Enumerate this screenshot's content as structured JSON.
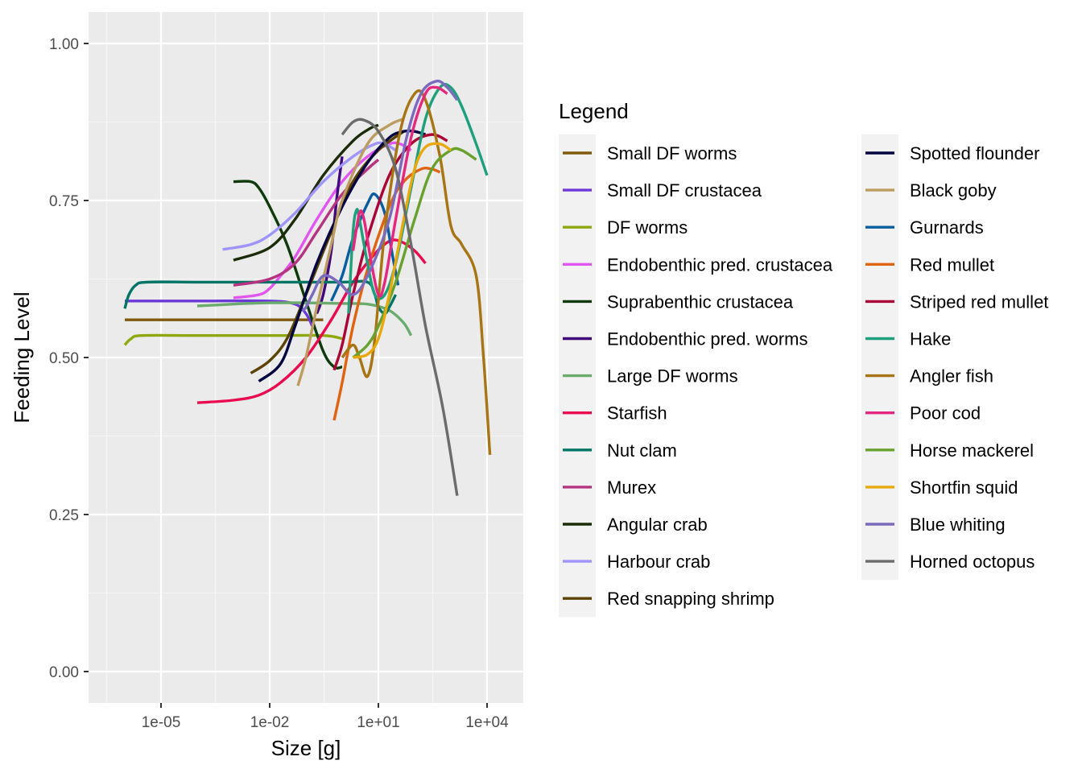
{
  "chart_data": {
    "type": "line",
    "xlabel": "Size [g]",
    "ylabel": "Feeding Level",
    "x_scale": "log10",
    "xlim": [
      1e-07,
      100000.0
    ],
    "ylim": [
      -0.05,
      1.05
    ],
    "x_ticks": [
      1e-05,
      0.01,
      10.0,
      10000.0
    ],
    "x_tick_labels": [
      "1e-05",
      "1e-02",
      "1e+01",
      "1e+04"
    ],
    "y_ticks": [
      0,
      0.25,
      0.5,
      0.75,
      1
    ],
    "y_tick_labels": [
      "0.00",
      "0.25",
      "0.50",
      "0.75",
      "1.00"
    ],
    "grid": true,
    "legend": {
      "title": "Legend",
      "placement": "right"
    },
    "series": [
      {
        "name": "Small DF worms",
        "color": "#7F5A0C",
        "points": [
          [
            1e-06,
            0.56
          ],
          [
            0.0001,
            0.56
          ],
          [
            0.01,
            0.56
          ],
          [
            0.1,
            0.56
          ],
          [
            0.3,
            0.56
          ]
        ]
      },
      {
        "name": "Small DF crustacea",
        "color": "#6C39D8",
        "points": [
          [
            1e-06,
            0.59
          ],
          [
            0.0001,
            0.59
          ],
          [
            0.01,
            0.59
          ],
          [
            0.05,
            0.585
          ],
          [
            0.1,
            0.57
          ],
          [
            0.15,
            0.55
          ]
        ]
      },
      {
        "name": "DF worms",
        "color": "#8EA80F",
        "points": [
          [
            1e-06,
            0.52
          ],
          [
            1.5e-06,
            0.53
          ],
          [
            3e-06,
            0.535
          ],
          [
            0.0001,
            0.535
          ],
          [
            0.01,
            0.535
          ],
          [
            0.3,
            0.535
          ],
          [
            1,
            0.53
          ]
        ]
      },
      {
        "name": "Endobenthic pred. crustacea",
        "color": "#E156F0",
        "points": [
          [
            0.001,
            0.595
          ],
          [
            0.005,
            0.6
          ],
          [
            0.01,
            0.61
          ],
          [
            0.02,
            0.63
          ],
          [
            0.05,
            0.66
          ],
          [
            0.2,
            0.72
          ],
          [
            1,
            0.78
          ],
          [
            5,
            0.82
          ],
          [
            20,
            0.84
          ],
          [
            40,
            0.84
          ],
          [
            80,
            0.83
          ]
        ]
      },
      {
        "name": "Suprabenthic crustacea",
        "color": "#0E3A0C",
        "points": [
          [
            0.001,
            0.78
          ],
          [
            0.003,
            0.78
          ],
          [
            0.005,
            0.77
          ],
          [
            0.01,
            0.74
          ],
          [
            0.03,
            0.68
          ],
          [
            0.1,
            0.59
          ],
          [
            0.3,
            0.51
          ],
          [
            0.6,
            0.485
          ],
          [
            1,
            0.485
          ]
        ]
      },
      {
        "name": "Endobenthic pred. worms",
        "color": "#3F087B",
        "points": [
          [
            0.2,
            0.57
          ],
          [
            0.3,
            0.6
          ],
          [
            0.5,
            0.67
          ],
          [
            0.7,
            0.75
          ],
          [
            1,
            0.82
          ]
        ]
      },
      {
        "name": "Large DF worms",
        "color": "#6BAB6D",
        "points": [
          [
            0.0001,
            0.582
          ],
          [
            0.001,
            0.585
          ],
          [
            0.01,
            0.587
          ],
          [
            0.1,
            0.587
          ],
          [
            1,
            0.586
          ],
          [
            5,
            0.585
          ],
          [
            20,
            0.575
          ],
          [
            50,
            0.555
          ],
          [
            80,
            0.535
          ]
        ]
      },
      {
        "name": "Starfish",
        "color": "#EA0A50",
        "points": [
          [
            0.0001,
            0.428
          ],
          [
            0.001,
            0.432
          ],
          [
            0.005,
            0.44
          ],
          [
            0.02,
            0.46
          ],
          [
            0.1,
            0.5
          ],
          [
            0.5,
            0.56
          ],
          [
            2,
            0.62
          ],
          [
            8,
            0.665
          ],
          [
            20,
            0.685
          ],
          [
            40,
            0.685
          ],
          [
            100,
            0.67
          ],
          [
            200,
            0.65
          ]
        ]
      },
      {
        "name": "Nut clam",
        "color": "#007566",
        "points": [
          [
            1e-06,
            0.578
          ],
          [
            1.3e-06,
            0.6
          ],
          [
            2e-06,
            0.615
          ],
          [
            4e-06,
            0.62
          ],
          [
            0.0001,
            0.62
          ],
          [
            0.01,
            0.62
          ],
          [
            1,
            0.62
          ],
          [
            5,
            0.62
          ],
          [
            8,
            0.6
          ],
          [
            10,
            0.58
          ],
          [
            15,
            0.57
          ],
          [
            20,
            0.58
          ],
          [
            30,
            0.6
          ]
        ]
      },
      {
        "name": "Murex",
        "color": "#B53480",
        "points": [
          [
            0.001,
            0.615
          ],
          [
            0.01,
            0.625
          ],
          [
            0.05,
            0.65
          ],
          [
            0.2,
            0.7
          ],
          [
            1,
            0.76
          ],
          [
            5,
            0.8
          ],
          [
            10,
            0.815
          ]
        ]
      },
      {
        "name": "Angular crab",
        "color": "#1C2C08",
        "points": [
          [
            0.001,
            0.655
          ],
          [
            0.01,
            0.675
          ],
          [
            0.05,
            0.72
          ],
          [
            0.3,
            0.79
          ],
          [
            2,
            0.845
          ],
          [
            6,
            0.865
          ],
          [
            10,
            0.87
          ]
        ]
      },
      {
        "name": "Harbour crab",
        "color": "#9E94FB",
        "points": [
          [
            0.0005,
            0.672
          ],
          [
            0.003,
            0.68
          ],
          [
            0.01,
            0.695
          ],
          [
            0.05,
            0.73
          ],
          [
            0.3,
            0.78
          ],
          [
            2,
            0.82
          ],
          [
            8,
            0.84
          ],
          [
            15,
            0.84
          ],
          [
            30,
            0.83
          ]
        ]
      },
      {
        "name": "Red snapping shrimp",
        "color": "#5C4304",
        "points": [
          [
            0.003,
            0.475
          ],
          [
            0.01,
            0.495
          ],
          [
            0.03,
            0.53
          ],
          [
            0.1,
            0.6
          ],
          [
            0.5,
            0.7
          ],
          [
            2,
            0.78
          ],
          [
            10,
            0.83
          ],
          [
            50,
            0.86
          ]
        ]
      },
      {
        "name": "Spotted flounder",
        "color": "#050542",
        "points": [
          [
            0.005,
            0.462
          ],
          [
            0.02,
            0.49
          ],
          [
            0.05,
            0.55
          ],
          [
            0.2,
            0.65
          ],
          [
            1,
            0.74
          ],
          [
            5,
            0.81
          ],
          [
            20,
            0.85
          ],
          [
            50,
            0.86
          ],
          [
            100,
            0.86
          ],
          [
            200,
            0.855
          ]
        ]
      },
      {
        "name": "Black goby",
        "color": "#BD9C62",
        "points": [
          [
            0.06,
            0.455
          ],
          [
            0.1,
            0.5
          ],
          [
            0.2,
            0.58
          ],
          [
            0.5,
            0.68
          ],
          [
            1,
            0.75
          ],
          [
            5,
            0.84
          ],
          [
            20,
            0.87
          ],
          [
            50,
            0.88
          ]
        ]
      },
      {
        "name": "Gurnards",
        "color": "#0B5E9E",
        "points": [
          [
            0.5,
            0.59
          ],
          [
            1,
            0.63
          ],
          [
            2,
            0.69
          ],
          [
            5,
            0.745
          ],
          [
            8,
            0.76
          ],
          [
            15,
            0.73
          ],
          [
            25,
            0.66
          ],
          [
            35,
            0.615
          ]
        ]
      },
      {
        "name": "Red mullet",
        "color": "#E06312",
        "points": [
          [
            0.6,
            0.4
          ],
          [
            1,
            0.46
          ],
          [
            2,
            0.55
          ],
          [
            5,
            0.64
          ],
          [
            20,
            0.74
          ],
          [
            50,
            0.78
          ],
          [
            150,
            0.8
          ],
          [
            300,
            0.8
          ],
          [
            500,
            0.795
          ]
        ]
      },
      {
        "name": "Striped red mullet",
        "color": "#AA0537",
        "points": [
          [
            0.6,
            0.48
          ],
          [
            1,
            0.52
          ],
          [
            2,
            0.6
          ],
          [
            5,
            0.69
          ],
          [
            20,
            0.79
          ],
          [
            80,
            0.84
          ],
          [
            300,
            0.855
          ],
          [
            800,
            0.845
          ]
        ]
      },
      {
        "name": "Hake",
        "color": "#1FA07D",
        "points": [
          [
            1.5,
            0.57
          ],
          [
            2,
            0.7
          ],
          [
            2.5,
            0.735
          ],
          [
            3,
            0.72
          ],
          [
            5,
            0.65
          ],
          [
            8,
            0.6
          ],
          [
            15,
            0.6
          ],
          [
            30,
            0.65
          ],
          [
            80,
            0.77
          ],
          [
            200,
            0.88
          ],
          [
            500,
            0.93
          ],
          [
            1000,
            0.93
          ],
          [
            2000,
            0.9
          ],
          [
            5000,
            0.84
          ],
          [
            10000.0,
            0.79
          ]
        ]
      },
      {
        "name": "Angler fish",
        "color": "#A77514",
        "points": [
          [
            1,
            0.5
          ],
          [
            2,
            0.52
          ],
          [
            3,
            0.5
          ],
          [
            5,
            0.47
          ],
          [
            8,
            0.53
          ],
          [
            15,
            0.7
          ],
          [
            40,
            0.86
          ],
          [
            100,
            0.92
          ],
          [
            200,
            0.91
          ],
          [
            500,
            0.82
          ],
          [
            1000,
            0.71
          ],
          [
            2000,
            0.68
          ],
          [
            5000,
            0.63
          ],
          [
            8000,
            0.5
          ],
          [
            12000.0,
            0.345
          ]
        ]
      },
      {
        "name": "Poor cod",
        "color": "#E4287F",
        "points": [
          [
            2,
            0.67
          ],
          [
            3,
            0.73
          ],
          [
            4,
            0.72
          ],
          [
            6,
            0.66
          ],
          [
            10,
            0.6
          ],
          [
            15,
            0.62
          ],
          [
            30,
            0.72
          ],
          [
            80,
            0.85
          ],
          [
            200,
            0.92
          ],
          [
            400,
            0.93
          ],
          [
            800,
            0.92
          ]
        ]
      },
      {
        "name": "Horse mackerel",
        "color": "#69A12E",
        "points": [
          [
            2,
            0.5
          ],
          [
            5,
            0.52
          ],
          [
            10,
            0.55
          ],
          [
            30,
            0.62
          ],
          [
            100,
            0.72
          ],
          [
            300,
            0.8
          ],
          [
            1000,
            0.83
          ],
          [
            2000,
            0.83
          ],
          [
            5000,
            0.815
          ]
        ]
      },
      {
        "name": "Shortfin squid",
        "color": "#E8A90C",
        "points": [
          [
            2,
            0.5
          ],
          [
            5,
            0.505
          ],
          [
            10,
            0.53
          ],
          [
            20,
            0.6
          ],
          [
            50,
            0.72
          ],
          [
            100,
            0.8
          ],
          [
            200,
            0.835
          ],
          [
            500,
            0.84
          ],
          [
            1000,
            0.83
          ]
        ]
      },
      {
        "name": "Blue whiting",
        "color": "#7B6BBE",
        "points": [
          [
            0.08,
            0.575
          ],
          [
            0.1,
            0.58
          ],
          [
            0.15,
            0.6
          ],
          [
            0.3,
            0.63
          ],
          [
            0.8,
            0.62
          ],
          [
            2,
            0.6
          ],
          [
            5,
            0.63
          ],
          [
            20,
            0.72
          ],
          [
            60,
            0.85
          ],
          [
            150,
            0.92
          ],
          [
            400,
            0.94
          ],
          [
            800,
            0.93
          ],
          [
            1500,
            0.91
          ]
        ]
      },
      {
        "name": "Horned octopus",
        "color": "#6B6B6B",
        "points": [
          [
            1,
            0.855
          ],
          [
            2,
            0.875
          ],
          [
            4,
            0.878
          ],
          [
            10,
            0.86
          ],
          [
            30,
            0.8
          ],
          [
            80,
            0.68
          ],
          [
            200,
            0.55
          ],
          [
            600,
            0.42
          ],
          [
            1500,
            0.28
          ]
        ]
      }
    ]
  }
}
